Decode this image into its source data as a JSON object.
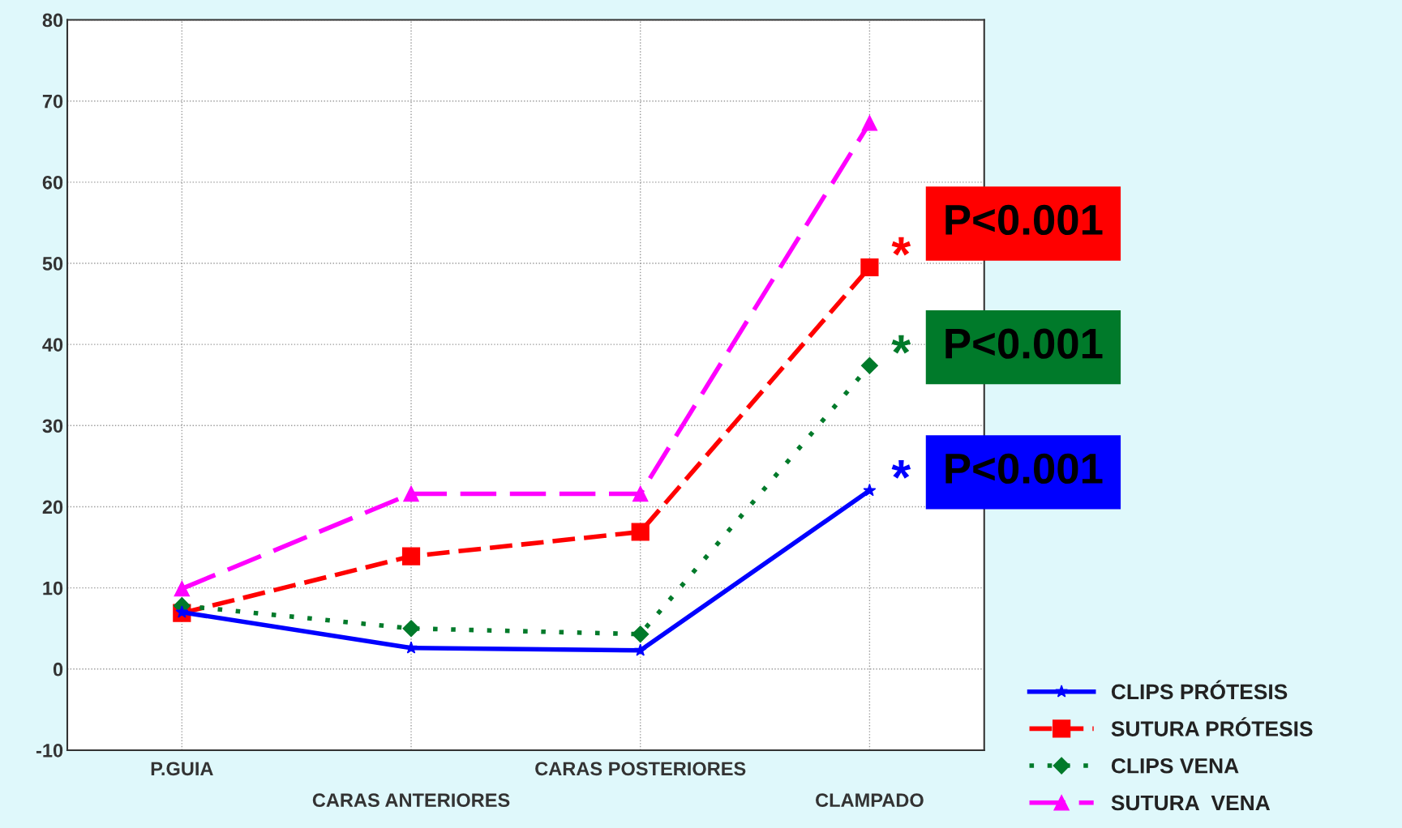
{
  "chart_data": {
    "type": "line",
    "categories": [
      "P.GUIA",
      "CARAS ANTERIORES",
      "CARAS POSTERIORES",
      "CLAMPADO"
    ],
    "series": [
      {
        "name": "CLIPS PRÓTESIS",
        "color": "#0000ff",
        "values": [
          7.0,
          2.6,
          2.3,
          22.0
        ],
        "marker": "star",
        "line_style": "solid"
      },
      {
        "name": "SUTURA PRÓTESIS",
        "color": "#ff0000",
        "values": [
          6.9,
          13.9,
          16.9,
          49.5
        ],
        "marker": "square",
        "line_style": "dashed"
      },
      {
        "name": "CLIPS VENA",
        "color": "#007a2a",
        "values": [
          7.8,
          5.0,
          4.3,
          37.4
        ],
        "marker": "diamond",
        "line_style": "dotted"
      },
      {
        "name": "SUTURA  VENA",
        "color": "#ff00ff",
        "values": [
          9.9,
          21.6,
          21.6,
          67.3
        ],
        "marker": "triangle",
        "line_style": "dashed"
      }
    ],
    "ylim": [
      -10,
      80
    ],
    "yticks": [
      -10,
      0,
      10,
      20,
      30,
      40,
      50,
      60,
      70,
      80
    ],
    "grid": true,
    "legend": "bottom right",
    "annotations": [
      {
        "text": "*",
        "x": "CLAMPADO",
        "y": 49.5
      },
      "P<0.001",
      {
        "text": "*",
        "x": "CLAMPADO",
        "y": 37.4
      },
      "P<0.001",
      {
        "text": "*",
        "x": "CLAMPADO",
        "y": 22.0
      },
      "P<0.001"
    ]
  }
}
